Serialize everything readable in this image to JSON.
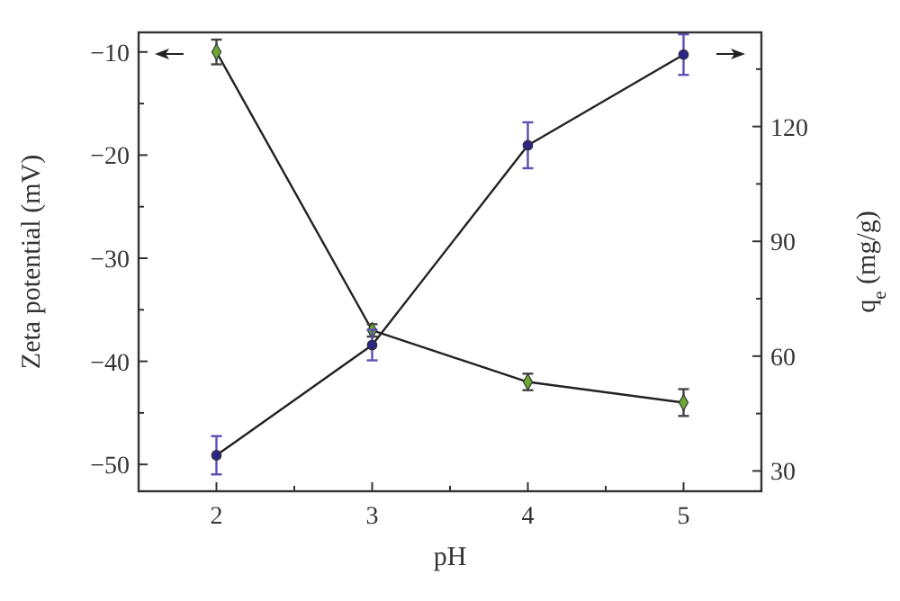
{
  "chart_data": {
    "type": "line",
    "xlabel": "pH",
    "ylabel": "Zeta potential (mV)",
    "y2label": "q$_{e}$ (mg/g)",
    "x": [
      2,
      3,
      4,
      5
    ],
    "xlim": [
      1.5,
      5.5
    ],
    "xticks": [
      2,
      {
        "value": 2.5,
        "label": null
      },
      3,
      {
        "value": 3.5,
        "label": null
      },
      4,
      {
        "value": 4.5,
        "label": null
      },
      5
    ],
    "ylim": [
      -52.6,
      -8.1
    ],
    "yticks": [
      {
        "value": -50,
        "label": "−50"
      },
      {
        "value": -45,
        "label": null
      },
      {
        "value": -40,
        "label": "−40"
      },
      {
        "value": -35,
        "label": null
      },
      {
        "value": -30,
        "label": "−30"
      },
      {
        "value": -25,
        "label": null
      },
      {
        "value": -20,
        "label": "−20"
      },
      {
        "value": -15,
        "label": null
      },
      {
        "value": -10,
        "label": "−10"
      }
    ],
    "y2lim": [
      24.7,
      144.6
    ],
    "y2ticks": [
      30,
      {
        "value": 45,
        "label": null
      },
      60,
      {
        "value": 75,
        "label": null
      },
      90,
      {
        "value": 105,
        "label": null
      },
      120,
      {
        "value": 135,
        "label": null
      }
    ],
    "series": [
      {
        "color": "#6aa832",
        "marker": "diamond",
        "values": [
          -10,
          -37,
          -42,
          -44
        ],
        "errors": [
          1.2,
          0.6,
          0.8,
          1.3
        ]
      },
      {
        "color": "#2b2489",
        "marker": "circle",
        "axis": "y2",
        "values": [
          34.1,
          62.9,
          115.1,
          138.8
        ],
        "errors": [
          5,
          4,
          6,
          5.3
        ]
      }
    ],
    "grid": false
  }
}
